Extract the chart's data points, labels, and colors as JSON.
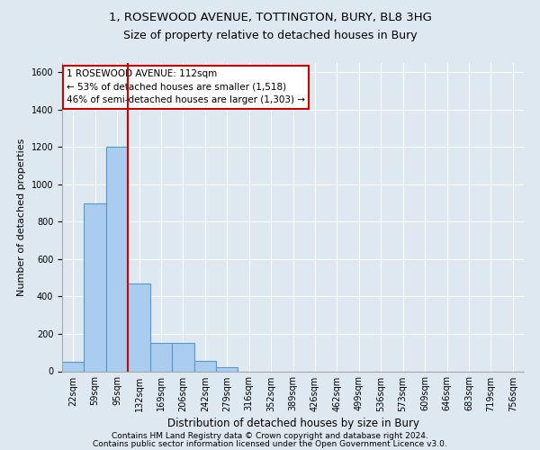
{
  "title_line1": "1, ROSEWOOD AVENUE, TOTTINGTON, BURY, BL8 3HG",
  "title_line2": "Size of property relative to detached houses in Bury",
  "xlabel": "Distribution of detached houses by size in Bury",
  "ylabel": "Number of detached properties",
  "footer_line1": "Contains HM Land Registry data © Crown copyright and database right 2024.",
  "footer_line2": "Contains public sector information licensed under the Open Government Licence v3.0.",
  "bin_labels": [
    "22sqm",
    "59sqm",
    "95sqm",
    "132sqm",
    "169sqm",
    "206sqm",
    "242sqm",
    "279sqm",
    "316sqm",
    "352sqm",
    "389sqm",
    "426sqm",
    "462sqm",
    "499sqm",
    "536sqm",
    "573sqm",
    "609sqm",
    "646sqm",
    "683sqm",
    "719sqm",
    "756sqm"
  ],
  "bar_values": [
    50,
    900,
    1200,
    470,
    150,
    150,
    55,
    20,
    0,
    0,
    0,
    0,
    0,
    0,
    0,
    0,
    0,
    0,
    0,
    0,
    0
  ],
  "bar_color": "#aaccee",
  "bar_edge_color": "#5599cc",
  "vline_x": 2.5,
  "vline_color": "#cc0000",
  "annotation_text": "1 ROSEWOOD AVENUE: 112sqm\n← 53% of detached houses are smaller (1,518)\n46% of semi-detached houses are larger (1,303) →",
  "annotation_box_color": "#ffffff",
  "annotation_box_edge": "#cc0000",
  "ylim": [
    0,
    1650
  ],
  "yticks": [
    0,
    200,
    400,
    600,
    800,
    1000,
    1200,
    1400,
    1600
  ],
  "bg_color": "#dde8f0",
  "plot_bg_color": "#dde8f0",
  "grid_color": "#ffffff",
  "title1_fontsize": 9.5,
  "title2_fontsize": 9.0,
  "ylabel_fontsize": 8,
  "xlabel_fontsize": 8.5,
  "tick_fontsize": 7,
  "footer_fontsize": 6.5,
  "annotation_fontsize": 7.5
}
